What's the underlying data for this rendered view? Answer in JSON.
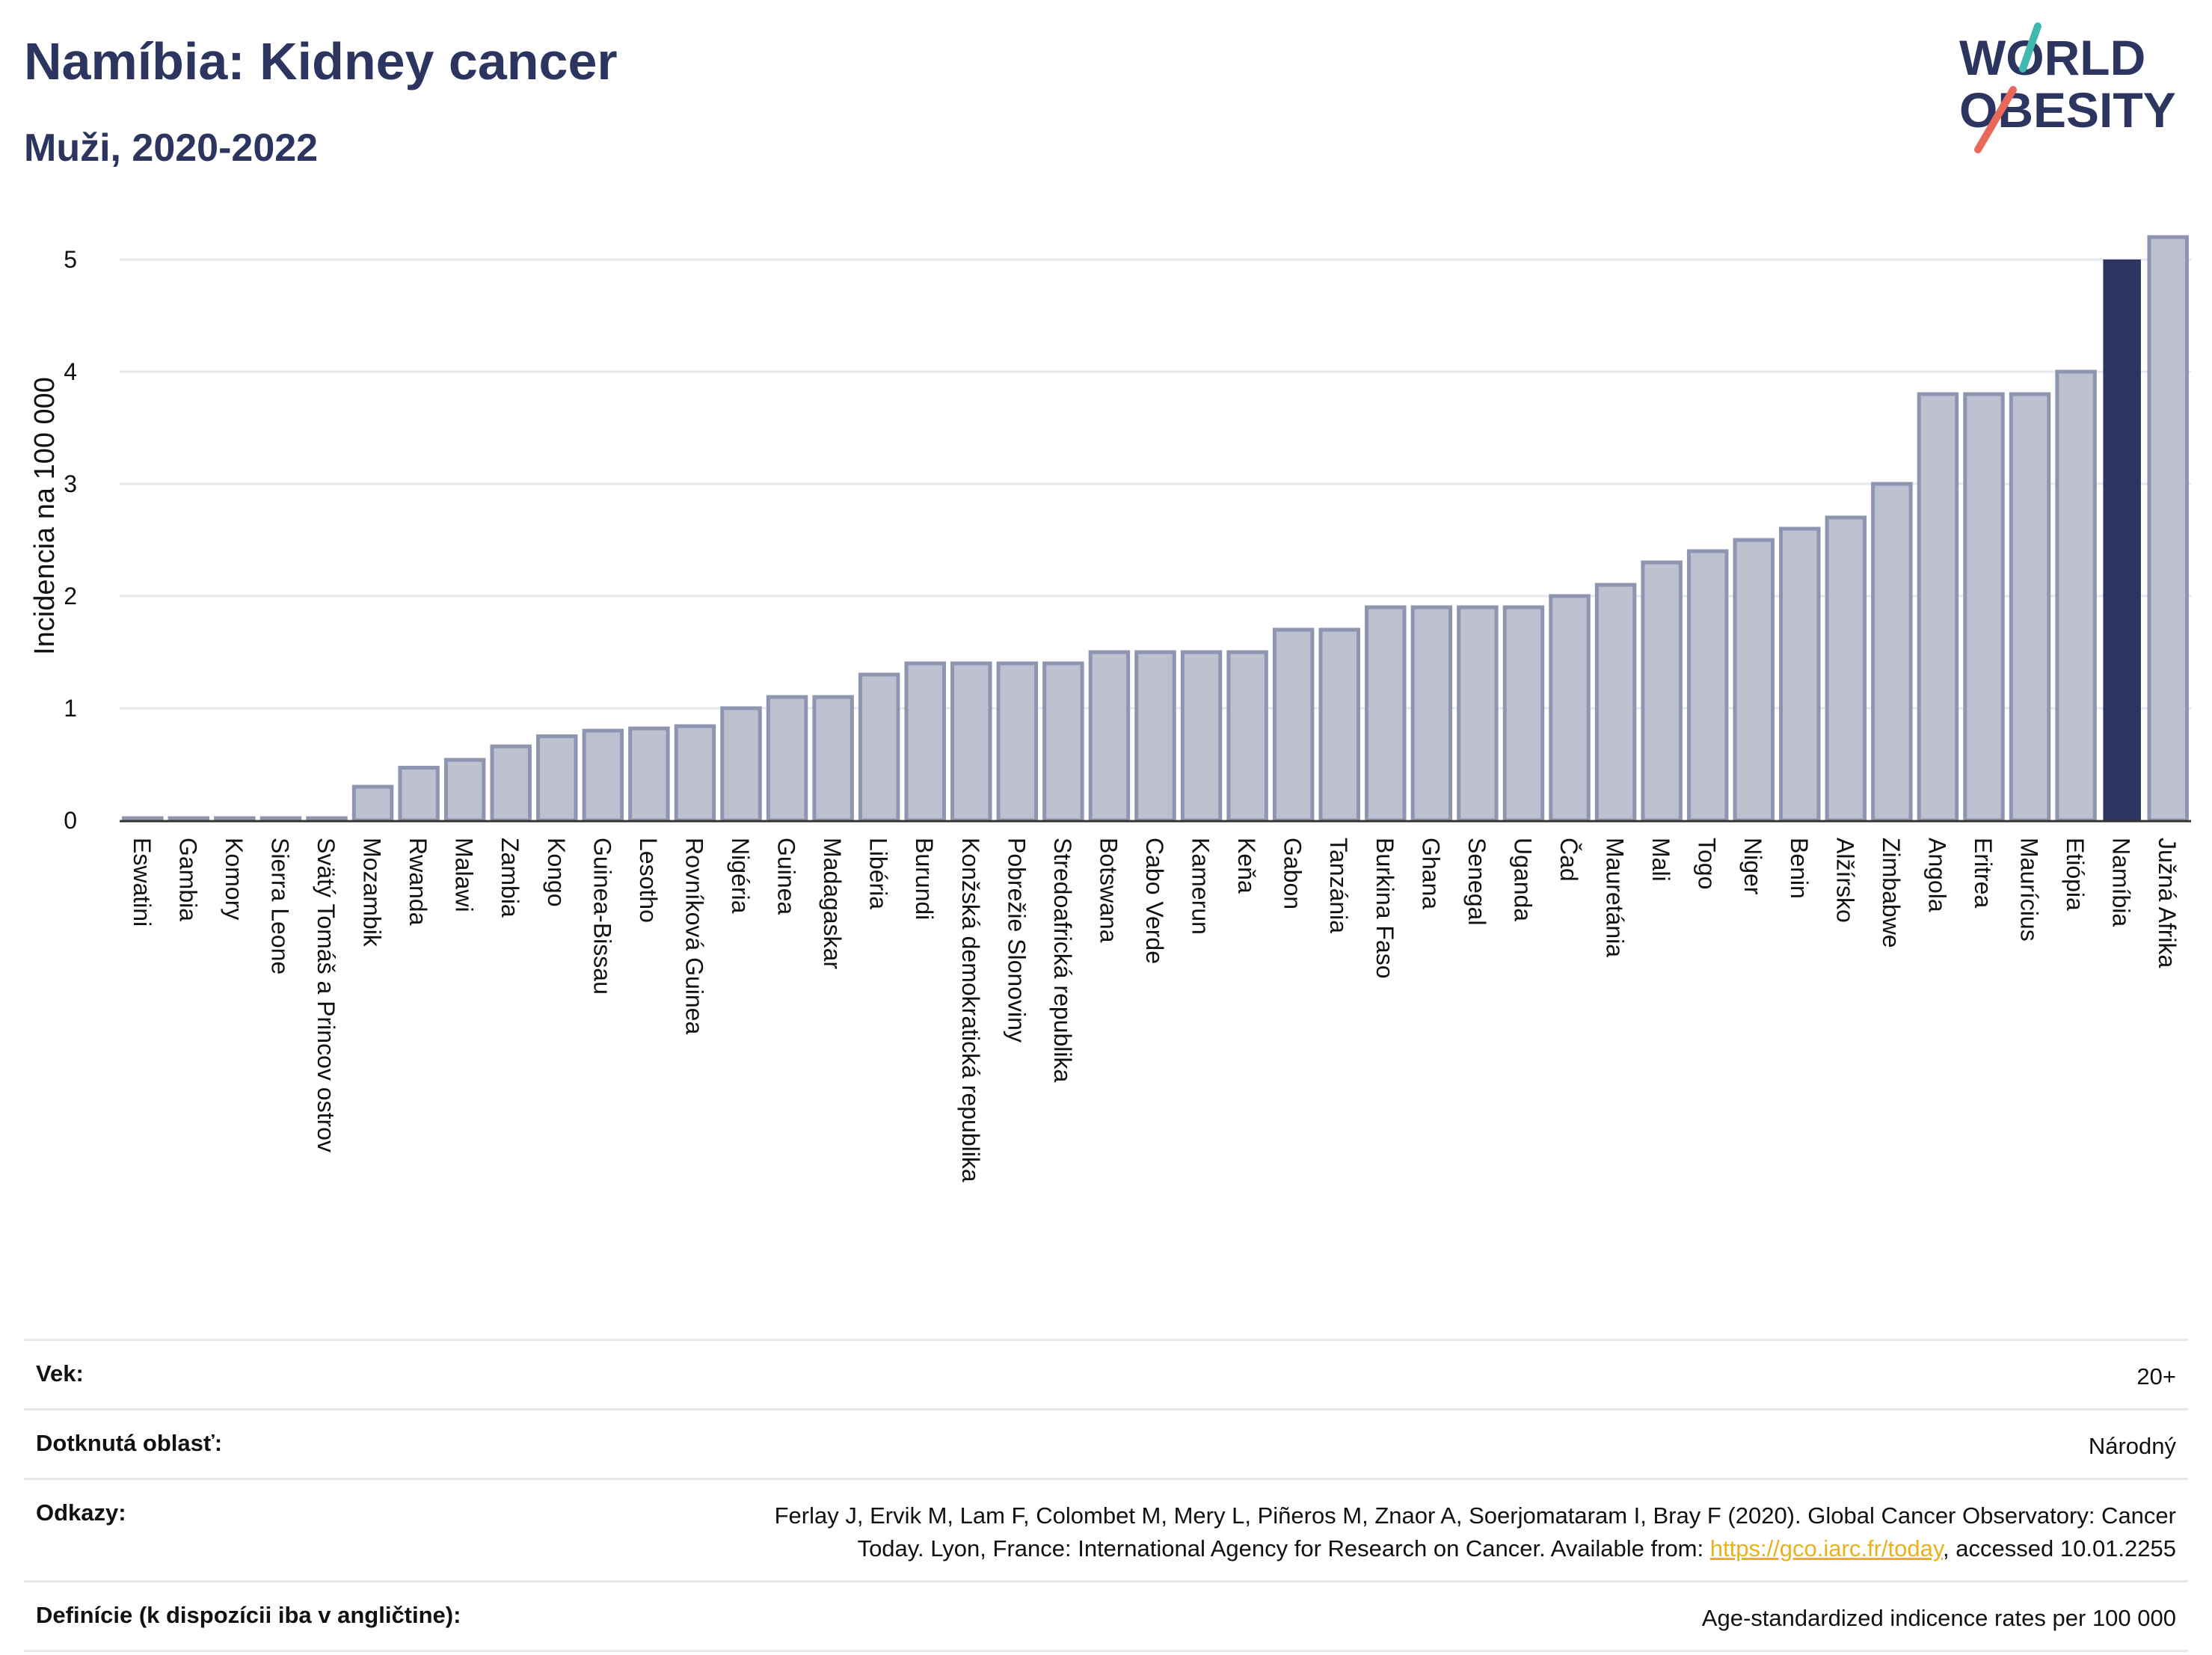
{
  "header": {
    "title": "Namíbia: Kidney cancer",
    "subtitle": "Muži, 2020-2022"
  },
  "logo": {
    "line1": "WORLD",
    "line2": "OBESITY",
    "slash_colors": [
      "#3fb8b0",
      "#e8695a"
    ]
  },
  "colors": {
    "bar": "#bcc0cf",
    "bar_stroke": "#8e95b0",
    "highlight": "#2c355f",
    "axis_text": "#111111",
    "grid": "#e6e8ee"
  },
  "chart_data": {
    "type": "bar",
    "ylabel": "Incidencia na 100 000",
    "ylim": [
      0,
      5.5
    ],
    "yticks": [
      0,
      1,
      2,
      3,
      4,
      5
    ],
    "highlight": "Namíbia",
    "categories": [
      "Eswatini",
      "Gambia",
      "Komory",
      "Sierra Leone",
      "Svätý Tomáš a Princov ostrov",
      "Mozambik",
      "Rwanda",
      "Malawi",
      "Zambia",
      "Kongo",
      "Guinea-Bissau",
      "Lesotho",
      "Rovníková Guinea",
      "Nigéria",
      "Guinea",
      "Madagaskar",
      "Libéria",
      "Burundi",
      "Konžská demokratická republika",
      "Pobrežie Slonoviny",
      "Stredoafrická republika",
      "Botswana",
      "Cabo Verde",
      "Kamerun",
      "Keňa",
      "Gabon",
      "Tanzánia",
      "Burkina Faso",
      "Ghana",
      "Senegal",
      "Uganda",
      "Čad",
      "Mauretánia",
      "Mali",
      "Togo",
      "Niger",
      "Benin",
      "Alžírsko",
      "Zimbabwe",
      "Angola",
      "Eritrea",
      "Maurícius",
      "Etiópia",
      "Namíbia",
      "Južná Afrika"
    ],
    "values": [
      0.02,
      0.02,
      0.02,
      0.02,
      0.02,
      0.3,
      0.47,
      0.54,
      0.66,
      0.75,
      0.8,
      0.82,
      0.84,
      1.0,
      1.1,
      1.1,
      1.3,
      1.4,
      1.4,
      1.4,
      1.4,
      1.5,
      1.5,
      1.5,
      1.5,
      1.7,
      1.7,
      1.9,
      1.9,
      1.9,
      1.9,
      2.0,
      2.1,
      2.3,
      2.4,
      2.5,
      2.6,
      2.7,
      3.0,
      3.8,
      3.8,
      3.8,
      4.0,
      5.0,
      5.2
    ]
  },
  "meta": {
    "age_label": "Vek:",
    "age_value": "20+",
    "area_label": "Dotknutá oblasť:",
    "area_value": "Národný",
    "refs_label": "Odkazy:",
    "refs_text_1": "Ferlay J, Ervik M, Lam F, Colombet M, Mery L, Piñeros M, Znaor A, Soerjomataram I, Bray F (2020). Global Cancer Observatory: Cancer",
    "refs_text_2": "Today. Lyon, France: International Agency for Research on Cancer. Available from: ",
    "refs_link": "https://gco.iarc.fr/today",
    "refs_text_3": ", accessed 10.01.2255",
    "def_label": "Definície (k dispozícii iba v angličtine):",
    "def_value": "Age-standardized indicence rates per 100 000"
  }
}
